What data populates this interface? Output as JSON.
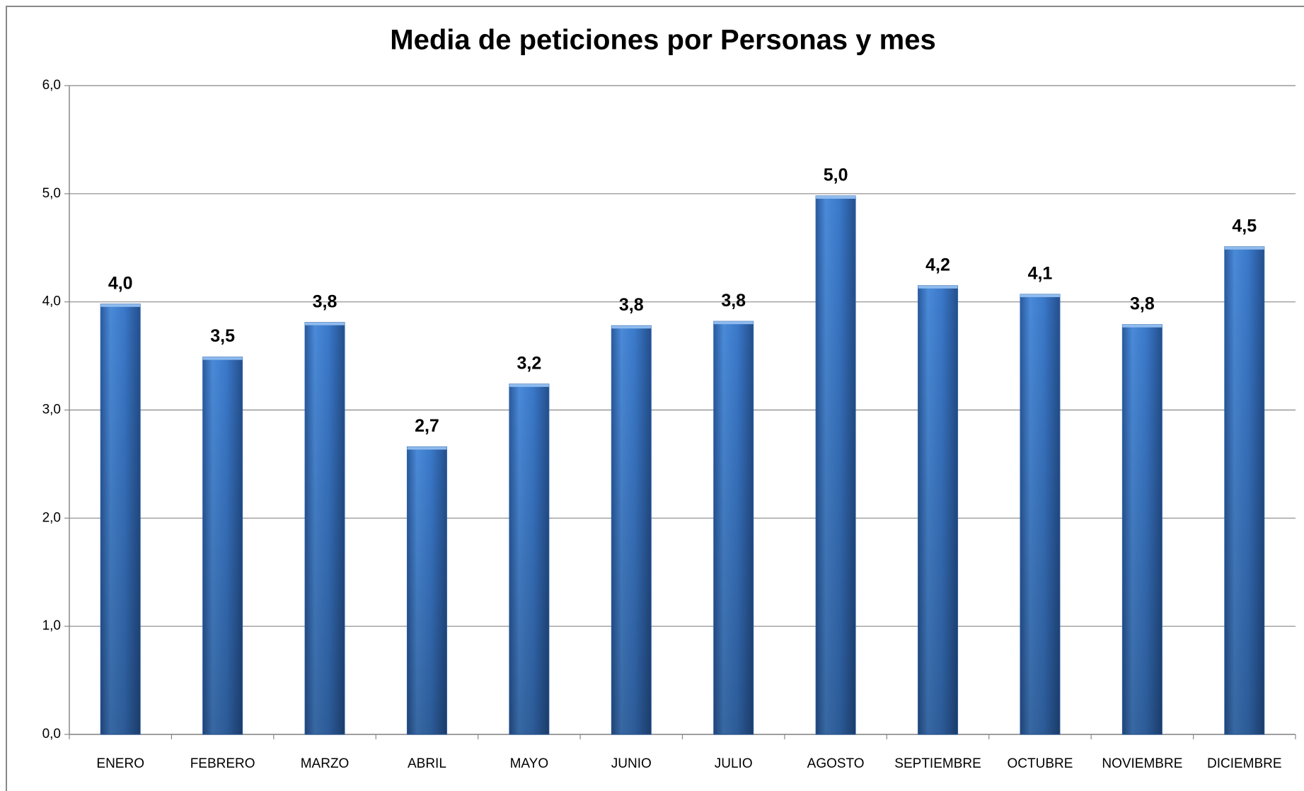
{
  "chart_data": {
    "type": "bar",
    "title": "Media de peticiones por Personas y mes",
    "categories": [
      "ENERO",
      "FEBRERO",
      "MARZO",
      "ABRIL",
      "MAYO",
      "JUNIO",
      "JULIO",
      "AGOSTO",
      "SEPTIEMBRE",
      "OCTUBRE",
      "NOVIEMBRE",
      "DICIEMBRE"
    ],
    "values": [
      3.98,
      3.49,
      3.81,
      2.66,
      3.24,
      3.78,
      3.82,
      4.98,
      4.15,
      4.07,
      3.79,
      4.51
    ],
    "value_labels": [
      "4,0",
      "3,5",
      "3,8",
      "2,7",
      "3,2",
      "3,8",
      "3,8",
      "5,0",
      "4,2",
      "4,1",
      "3,8",
      "4,5"
    ],
    "color": "#3a78c9",
    "ylim": [
      0,
      6
    ],
    "yticks": [
      {
        "value": 0,
        "label": "0,0"
      },
      {
        "value": 1,
        "label": "1,0"
      },
      {
        "value": 2,
        "label": "2,0"
      },
      {
        "value": 3,
        "label": "3,0"
      },
      {
        "value": 4,
        "label": "4,0"
      },
      {
        "value": 5,
        "label": "5,0"
      },
      {
        "value": 6,
        "label": "6,0"
      }
    ],
    "grid": true
  }
}
